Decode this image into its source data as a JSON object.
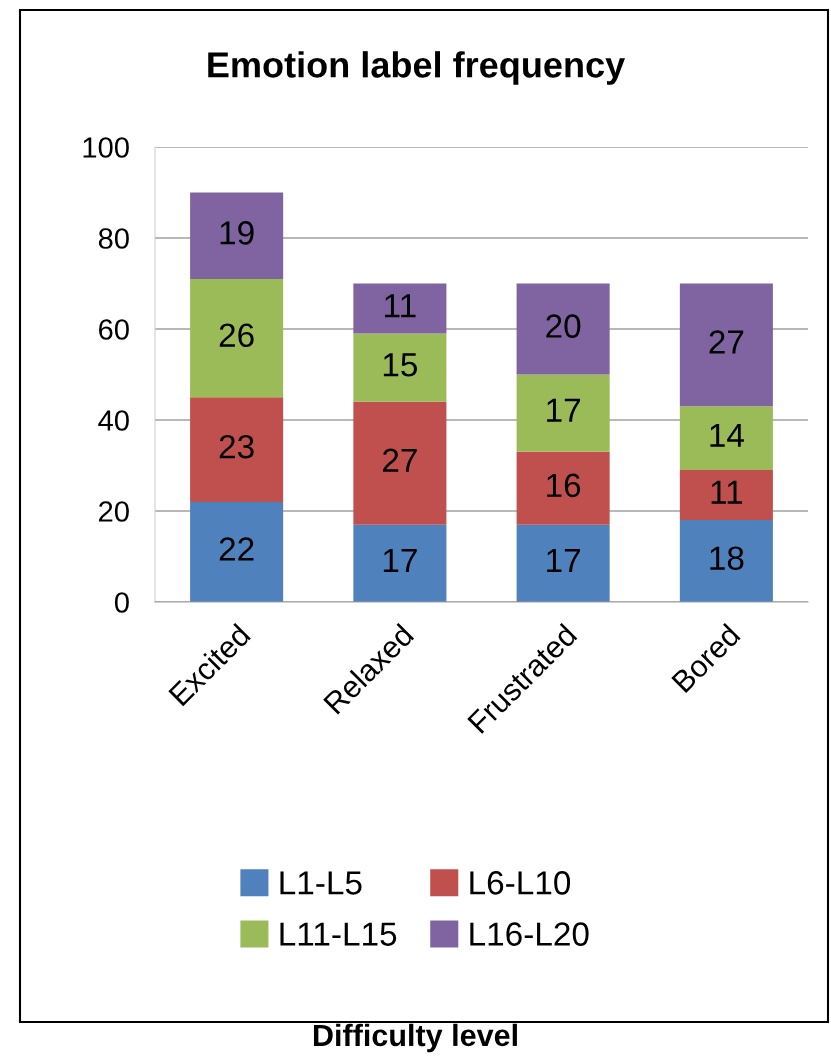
{
  "chart_data": {
    "type": "bar",
    "title": "Emotion label frequency",
    "annotations": [
      "Difficulty level"
    ],
    "categories": [
      "Excited",
      "Relaxed",
      "Frustrated",
      "Bored"
    ],
    "stacked": true,
    "data_labels": true,
    "ylim": [
      0,
      100
    ],
    "yticks": [
      0,
      20,
      40,
      60,
      80,
      100
    ],
    "grid": "y",
    "legend": "bottom",
    "series": [
      {
        "name": "L1-L5",
        "color": "#4f81bd",
        "values": [
          22,
          17,
          17,
          18
        ]
      },
      {
        "name": "L6-L10",
        "color": "#c0504d",
        "values": [
          23,
          27,
          16,
          11
        ]
      },
      {
        "name": "L11-L15",
        "color": "#9bbb59",
        "values": [
          26,
          15,
          17,
          14
        ]
      },
      {
        "name": "L16-L20",
        "color": "#8064a2",
        "values": [
          19,
          11,
          20,
          27
        ]
      }
    ]
  }
}
